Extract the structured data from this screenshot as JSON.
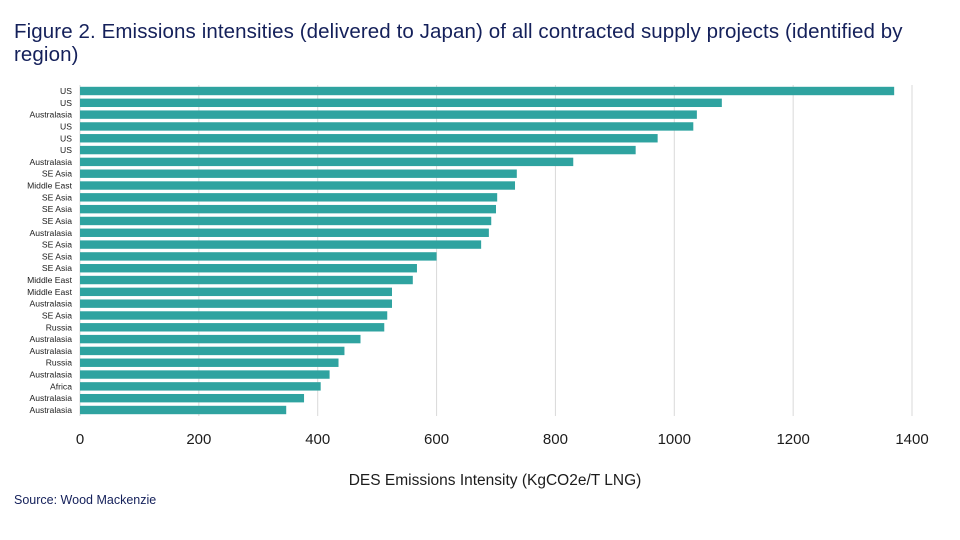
{
  "title": "Figure 2. Emissions intensities (delivered to Japan) of all contracted supply projects (identified by region)",
  "source": "Source: Wood Mackenzie",
  "colors": {
    "bar": "#2fa3a0",
    "grid": "#d9d9d9",
    "title": "#14205a"
  },
  "chart_data": {
    "type": "bar",
    "orientation": "horizontal",
    "title": "Figure 2. Emissions intensities (delivered to Japan) of all contracted supply projects (identified by region)",
    "xlabel": "DES Emissions Intensity (KgCO2e/T LNG)",
    "ylabel": "",
    "xlim": [
      0,
      1400
    ],
    "xticks": [
      0,
      200,
      400,
      600,
      800,
      1000,
      1200,
      1400
    ],
    "grid": true,
    "legend": "none",
    "categories": [
      "US",
      "US",
      "Australasia",
      "US",
      "US",
      "US",
      "Australasia",
      "SE Asia",
      "Middle East",
      "SE Asia",
      "SE Asia",
      "SE Asia",
      "Australasia",
      "SE Asia",
      "SE Asia",
      "SE Asia",
      "Middle East",
      "Middle East",
      "Australasia",
      "SE Asia",
      "Russia",
      "Australasia",
      "Australasia",
      "Russia",
      "Australasia",
      "Africa",
      "Australasia",
      "Australasia"
    ],
    "values": [
      1370,
      1080,
      1038,
      1032,
      972,
      935,
      830,
      735,
      732,
      702,
      700,
      692,
      688,
      675,
      600,
      567,
      560,
      525,
      525,
      517,
      512,
      472,
      445,
      435,
      420,
      405,
      377,
      347
    ]
  }
}
